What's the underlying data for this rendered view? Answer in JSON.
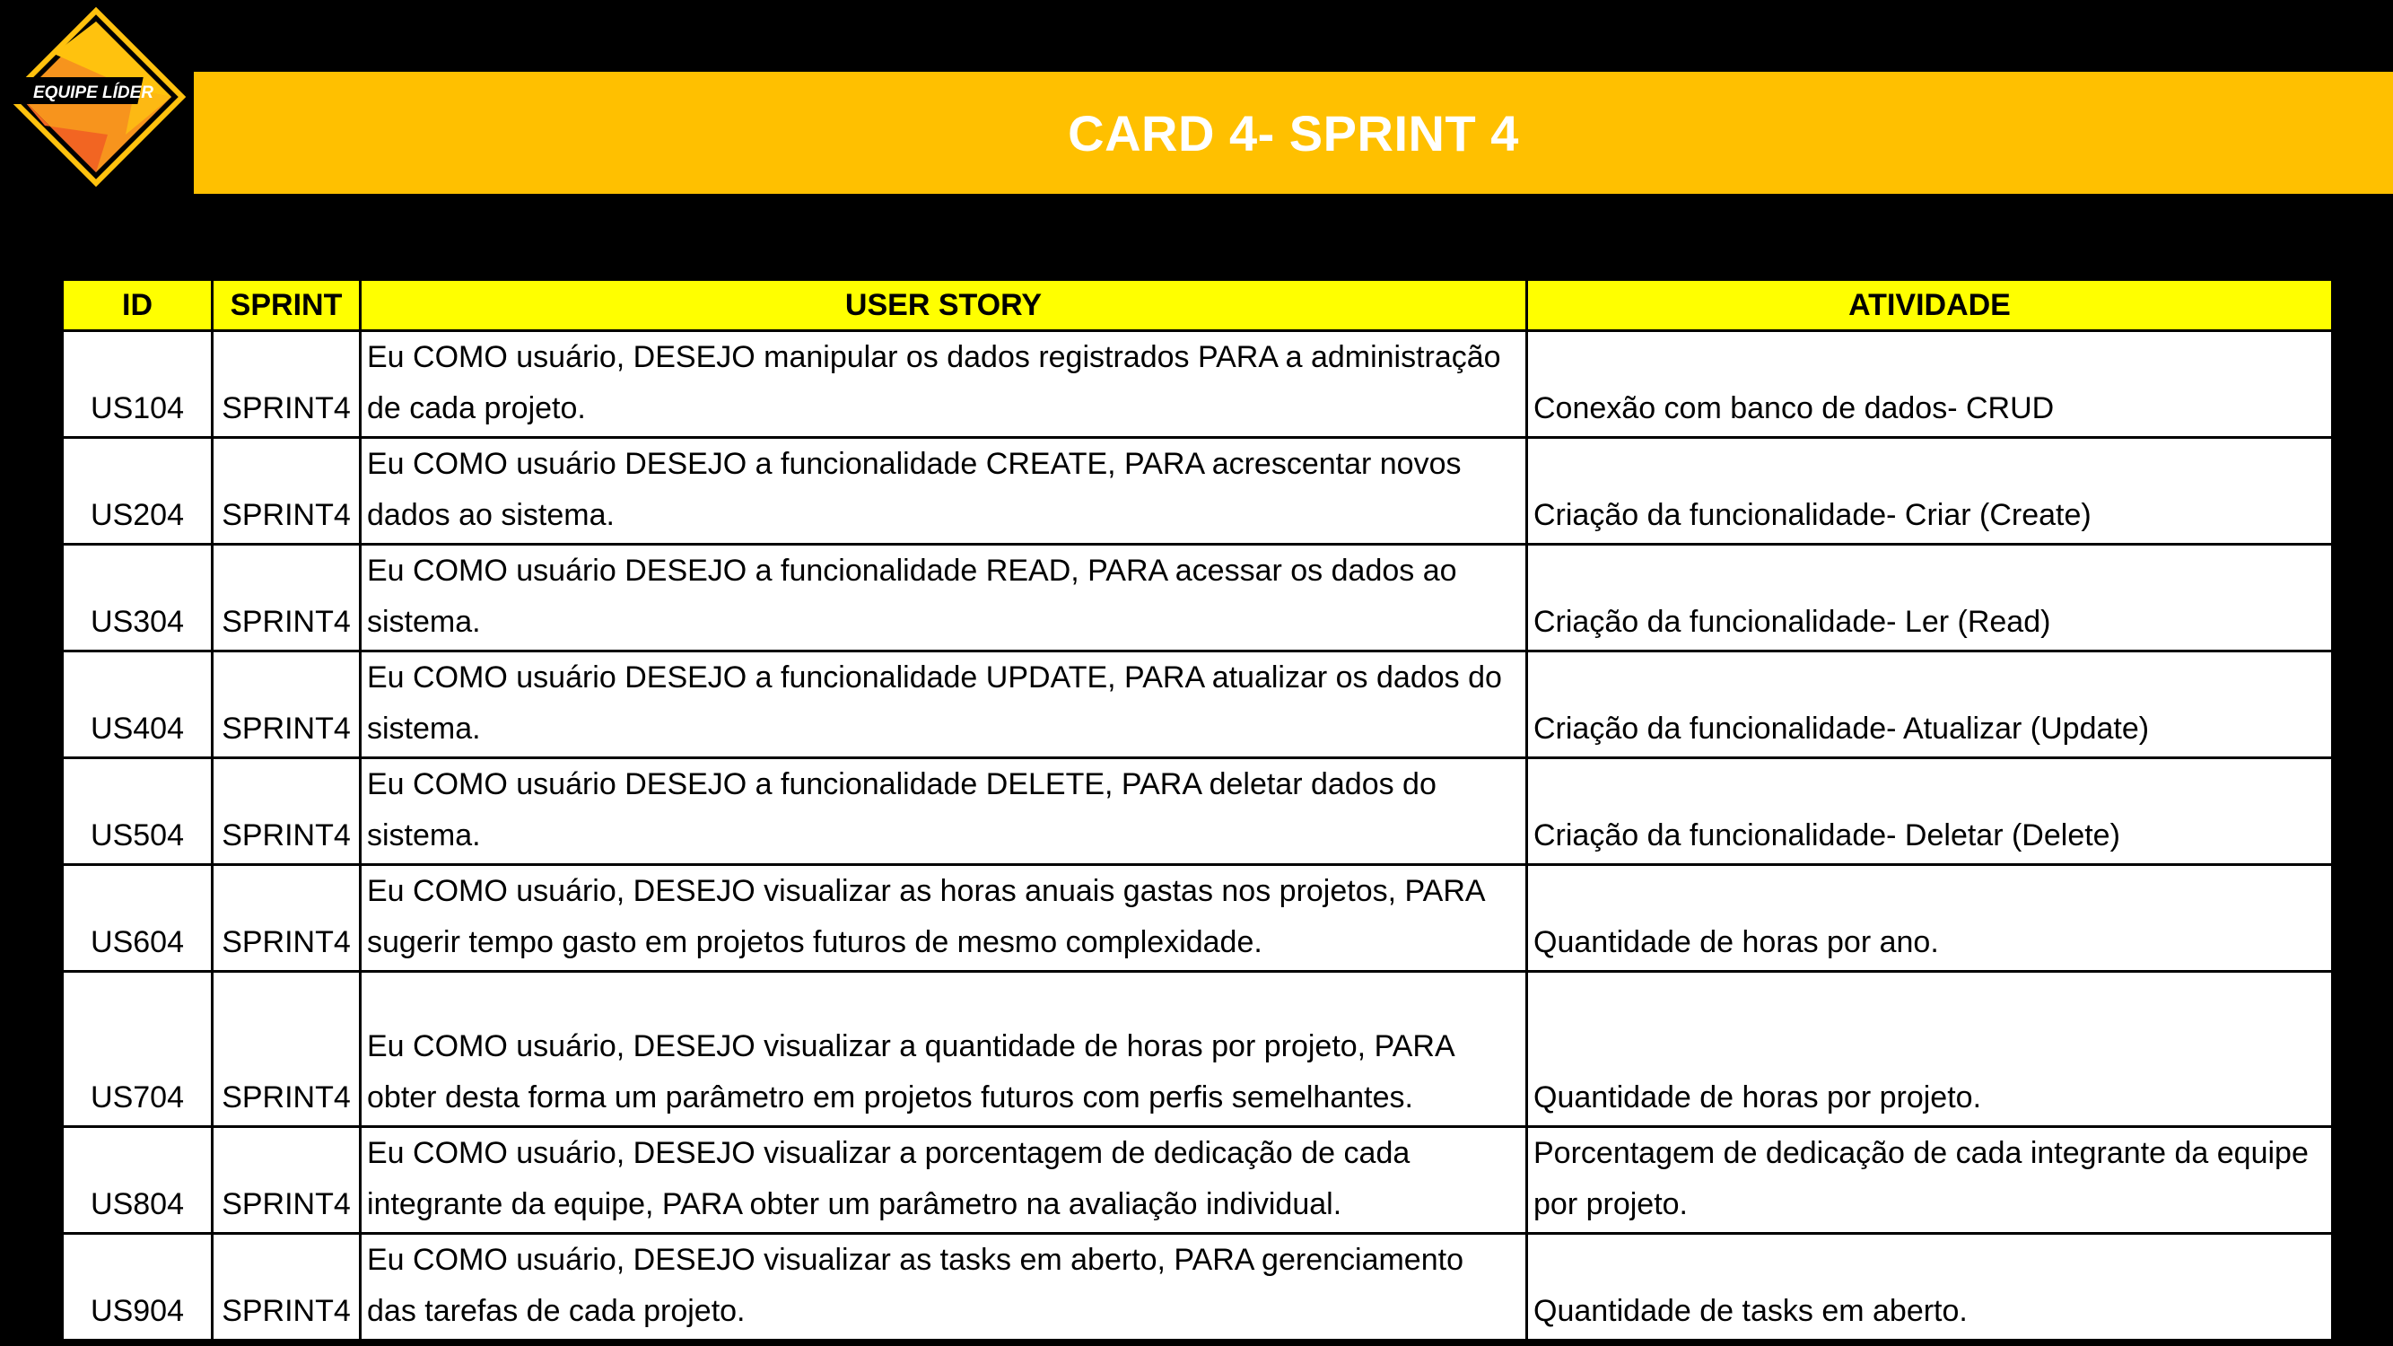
{
  "logo": {
    "text": "EQUIPE LÍDER"
  },
  "title": "CARD 4- SPRINT 4",
  "table": {
    "headers": [
      "ID",
      "SPRINT",
      "USER STORY",
      "ATIVIDADE"
    ],
    "rows": [
      {
        "id": "US104",
        "sprint": "SPRINT4",
        "story": "Eu COMO usuário, DESEJO manipular os dados registrados PARA a administração de cada projeto.",
        "activity": "Conexão com banco de dados- CRUD"
      },
      {
        "id": "US204",
        "sprint": "SPRINT4",
        "story": "Eu COMO usuário DESEJO a funcionalidade CREATE, PARA acrescentar novos dados ao sistema.",
        "activity": "Criação da funcionalidade- Criar (Create)"
      },
      {
        "id": "US304",
        "sprint": "SPRINT4",
        "story": "Eu COMO usuário DESEJO a funcionalidade READ, PARA acessar os dados ao sistema.",
        "activity": "Criação da funcionalidade- Ler (Read)"
      },
      {
        "id": "US404",
        "sprint": "SPRINT4",
        "story": "Eu COMO usuário DESEJO a funcionalidade UPDATE, PARA atualizar os dados do sistema.",
        "activity": "Criação da funcionalidade- Atualizar (Update)"
      },
      {
        "id": "US504",
        "sprint": "SPRINT4",
        "story": "Eu COMO usuário DESEJO a funcionalidade DELETE, PARA deletar dados do sistema.",
        "activity": "Criação da funcionalidade- Deletar (Delete)"
      },
      {
        "id": "US604",
        "sprint": "SPRINT4",
        "story": "Eu COMO usuário, DESEJO visualizar as horas anuais gastas nos projetos, PARA sugerir tempo gasto em projetos futuros de mesmo complexidade.",
        "activity": "Quantidade de horas por ano."
      },
      {
        "id": "US704",
        "sprint": "SPRINT4",
        "story": "Eu COMO usuário, DESEJO visualizar a quantidade de horas por projeto, PARA obter desta forma um parâmetro em projetos futuros com perfis semelhantes.",
        "activity": "Quantidade de horas por projeto."
      },
      {
        "id": "US804",
        "sprint": "SPRINT4",
        "story": "Eu COMO usuário, DESEJO visualizar a porcentagem de dedicação de cada integrante da equipe, PARA obter um parâmetro na avaliação individual.",
        "activity": "Porcentagem de dedicação de cada integrante da equipe por projeto."
      },
      {
        "id": "US904",
        "sprint": "SPRINT4",
        "story": "Eu COMO usuário, DESEJO visualizar as tasks em aberto, PARA gerenciamento das tarefas de cada projeto.",
        "activity": "Quantidade de tasks em aberto."
      }
    ]
  },
  "colors": {
    "background": "#000000",
    "title_bar": "#FFC000",
    "header_row": "#FFFF00",
    "logo_orange": "#F7941D",
    "logo_yellow": "#FFC20E"
  }
}
